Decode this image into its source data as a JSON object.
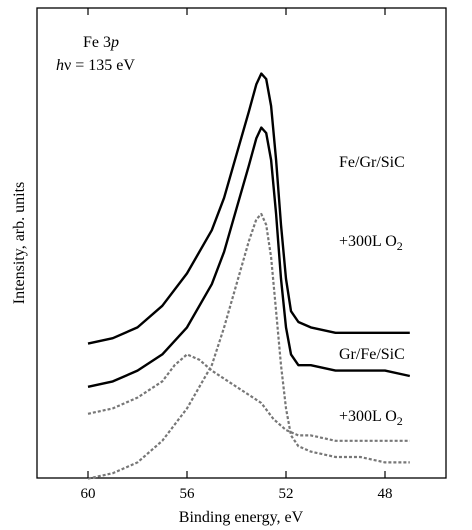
{
  "chart_data": {
    "type": "line",
    "title": "",
    "xlabel": "Binding energy, eV",
    "ylabel": "Intensity, arb. units",
    "x_reversed": true,
    "xlim": [
      62,
      45
    ],
    "x_ticks": [
      60,
      56,
      52,
      48
    ],
    "x_tick_labels": [
      "60",
      "56",
      "52",
      "48"
    ],
    "y_ticks": [],
    "grid": false,
    "annotation": {
      "line1_element": "Fe 3",
      "line1_orbital": "p",
      "line2_symbol": "h",
      "line2_text": "ν = 135 eV"
    },
    "series_labels": [
      {
        "text": "Fe/Gr/SiC"
      },
      {
        "text": "+300L O",
        "subscript": "2"
      },
      {
        "text": "Gr/Fe/SiC"
      },
      {
        "text": "+300L O",
        "subscript": "2"
      }
    ],
    "series": [
      {
        "group": "Fe/Gr/SiC",
        "style": "solid",
        "color": "#000000",
        "x": [
          60,
          59,
          58,
          57,
          56,
          55,
          54.5,
          54,
          53.5,
          53.2,
          53,
          52.8,
          52.6,
          52.4,
          52.2,
          52,
          51.8,
          51.5,
          51,
          50,
          49,
          48,
          47
        ],
        "values": [
          0.16,
          0.17,
          0.19,
          0.23,
          0.29,
          0.37,
          0.43,
          0.51,
          0.59,
          0.64,
          0.66,
          0.65,
          0.6,
          0.5,
          0.38,
          0.28,
          0.22,
          0.2,
          0.19,
          0.18,
          0.18,
          0.18,
          0.18
        ]
      },
      {
        "group": "Fe/Gr/SiC +300L O2",
        "style": "dashed",
        "color": "#777777",
        "x": [
          60,
          59,
          58,
          57,
          56.5,
          56,
          55.5,
          55,
          54,
          53,
          52.5,
          52,
          51.5,
          51,
          50,
          49,
          48,
          47
        ],
        "values": [
          0.03,
          0.04,
          0.06,
          0.09,
          0.12,
          0.14,
          0.13,
          0.11,
          0.08,
          0.05,
          0.02,
          0.0,
          -0.01,
          -0.01,
          -0.02,
          -0.02,
          -0.02,
          -0.02
        ]
      },
      {
        "group": "Gr/Fe/SiC",
        "style": "solid",
        "color": "#000000",
        "x": [
          60,
          59,
          58,
          57,
          56,
          55,
          54.5,
          54,
          53.5,
          53.2,
          53,
          52.8,
          52.6,
          52.4,
          52.2,
          52,
          51.8,
          51.5,
          51,
          50,
          49,
          48,
          47
        ],
        "values": [
          0.08,
          0.09,
          0.11,
          0.14,
          0.19,
          0.27,
          0.33,
          0.41,
          0.49,
          0.54,
          0.56,
          0.55,
          0.5,
          0.4,
          0.28,
          0.19,
          0.14,
          0.12,
          0.12,
          0.11,
          0.11,
          0.11,
          0.1
        ]
      },
      {
        "group": "Gr/Fe/SiC +300L O2",
        "style": "dashed",
        "color": "#777777",
        "x": [
          60,
          59,
          58,
          57,
          56,
          55,
          54.5,
          54,
          53.5,
          53.2,
          53,
          52.8,
          52.6,
          52.4,
          52.2,
          52,
          51.8,
          51.5,
          51,
          50,
          49,
          48,
          47
        ],
        "values": [
          -0.09,
          -0.08,
          -0.06,
          -0.02,
          0.04,
          0.12,
          0.19,
          0.27,
          0.35,
          0.39,
          0.4,
          0.38,
          0.32,
          0.22,
          0.12,
          0.04,
          -0.01,
          -0.03,
          -0.04,
          -0.05,
          -0.05,
          -0.06,
          -0.06
        ]
      }
    ]
  }
}
